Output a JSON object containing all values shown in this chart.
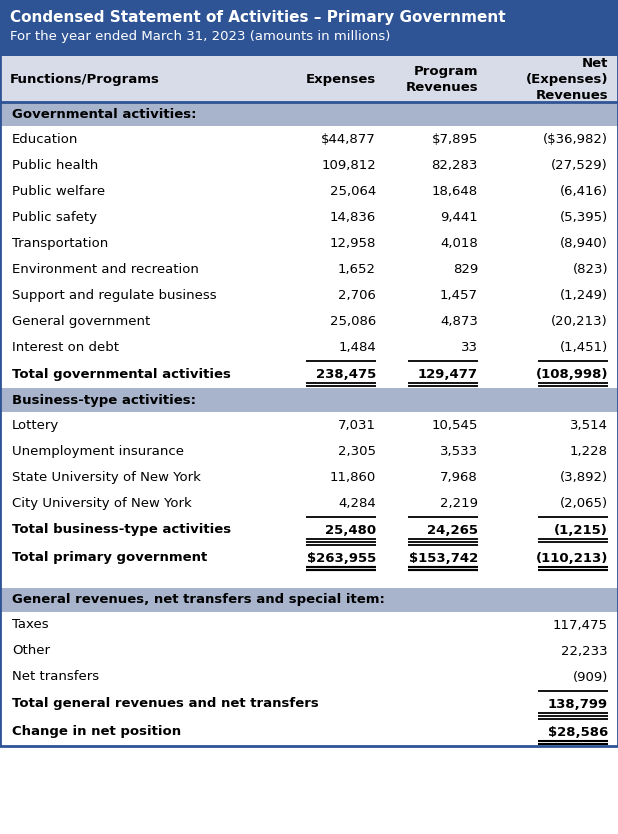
{
  "title_line1": "Condensed Statement of Activities – Primary Government",
  "title_line2": "For the year ended March 31, 2023 (amounts in millions)",
  "header_bg": "#2E5496",
  "header_text_color": "#FFFFFF",
  "section_bg": "#A8B4CC",
  "col_header_bg": "#D8DCE8",
  "rows": [
    {
      "type": "section",
      "label": "Governmental activities:",
      "cols": [
        "",
        "",
        ""
      ]
    },
    {
      "type": "data",
      "label": "Education",
      "cols": [
        "$44,877",
        "$7,895",
        "($36,982)"
      ]
    },
    {
      "type": "data",
      "label": "Public health",
      "cols": [
        "109,812",
        "82,283",
        "(27,529)"
      ]
    },
    {
      "type": "data",
      "label": "Public welfare",
      "cols": [
        "25,064",
        "18,648",
        "(6,416)"
      ]
    },
    {
      "type": "data",
      "label": "Public safety",
      "cols": [
        "14,836",
        "9,441",
        "(5,395)"
      ]
    },
    {
      "type": "data",
      "label": "Transportation",
      "cols": [
        "12,958",
        "4,018",
        "(8,940)"
      ]
    },
    {
      "type": "data",
      "label": "Environment and recreation",
      "cols": [
        "1,652",
        "829",
        "(823)"
      ]
    },
    {
      "type": "data",
      "label": "Support and regulate business",
      "cols": [
        "2,706",
        "1,457",
        "(1,249)"
      ]
    },
    {
      "type": "data",
      "label": "General government",
      "cols": [
        "25,086",
        "4,873",
        "(20,213)"
      ]
    },
    {
      "type": "data",
      "label": "Interest on debt",
      "cols": [
        "1,484",
        "33",
        "(1,451)"
      ]
    },
    {
      "type": "total",
      "label": "Total governmental activities",
      "cols": [
        "238,475",
        "129,477",
        "(108,998)"
      ],
      "underline_cols": [
        0,
        1,
        2
      ]
    },
    {
      "type": "section",
      "label": "Business-type activities:",
      "cols": [
        "",
        "",
        ""
      ]
    },
    {
      "type": "data",
      "label": "Lottery",
      "cols": [
        "7,031",
        "10,545",
        "3,514"
      ]
    },
    {
      "type": "data",
      "label": "Unemployment insurance",
      "cols": [
        "2,305",
        "3,533",
        "1,228"
      ]
    },
    {
      "type": "data",
      "label": "State University of New York",
      "cols": [
        "11,860",
        "7,968",
        "(3,892)"
      ]
    },
    {
      "type": "data",
      "label": "City University of New York",
      "cols": [
        "4,284",
        "2,219",
        "(2,065)"
      ]
    },
    {
      "type": "total",
      "label": "Total business-type activities",
      "cols": [
        "25,480",
        "24,265",
        "(1,215)"
      ],
      "underline_cols": [
        0,
        1,
        2
      ]
    },
    {
      "type": "total2",
      "label": "Total primary government",
      "cols": [
        "$263,955",
        "$153,742",
        "(110,213)"
      ],
      "underline_cols": [
        0,
        1
      ]
    },
    {
      "type": "gap",
      "label": "",
      "cols": [
        "",
        "",
        ""
      ]
    },
    {
      "type": "section",
      "label": "General revenues, net transfers and special item:",
      "cols": [
        "",
        "",
        ""
      ]
    },
    {
      "type": "data",
      "label": "Taxes",
      "cols": [
        "",
        "",
        "117,475"
      ]
    },
    {
      "type": "data",
      "label": "Other",
      "cols": [
        "",
        "",
        "22,233"
      ]
    },
    {
      "type": "data",
      "label": "Net transfers",
      "cols": [
        "",
        "",
        "(909)"
      ]
    },
    {
      "type": "total",
      "label": "Total general revenues and net transfers",
      "cols": [
        "",
        "",
        "138,799"
      ],
      "underline_cols": [
        2
      ]
    },
    {
      "type": "total2",
      "label": "Change in net position",
      "cols": [
        "",
        "",
        "$28,586"
      ],
      "underline_cols": [
        2
      ]
    }
  ]
}
